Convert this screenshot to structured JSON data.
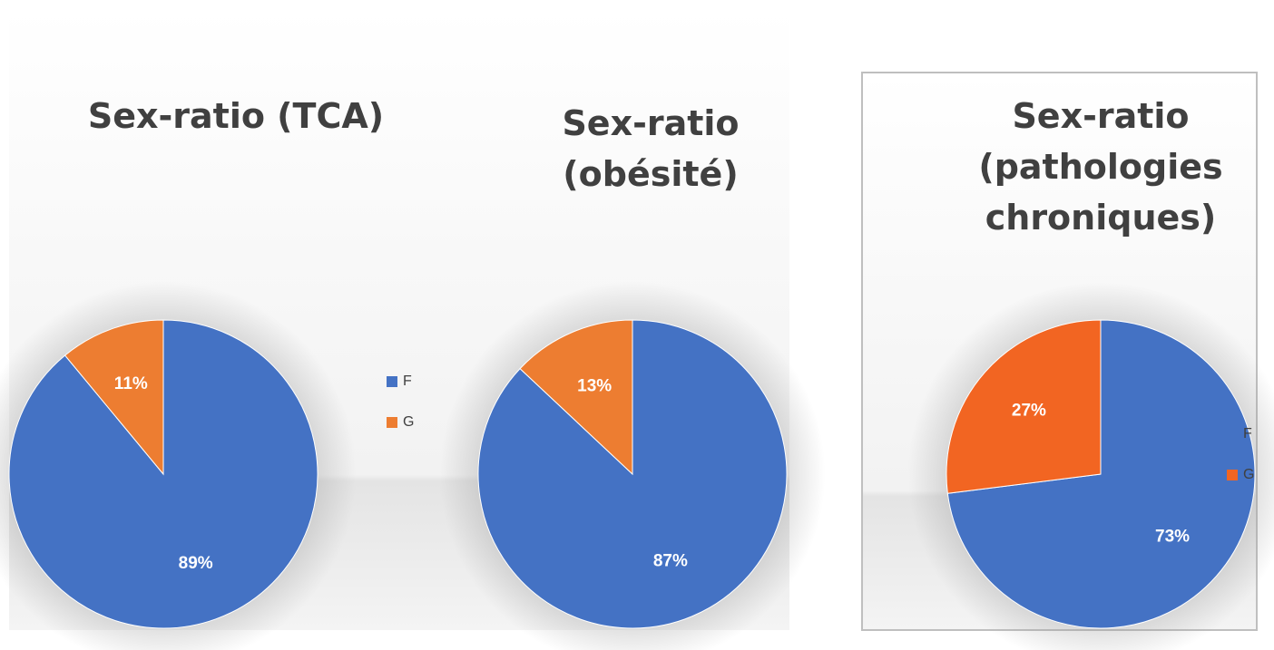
{
  "chart_data": [
    {
      "type": "pie",
      "title": "Sex-ratio (TCA)",
      "categories": [
        "F",
        "G"
      ],
      "values": [
        89,
        11
      ],
      "value_labels": [
        "89%",
        "11%"
      ],
      "colors": [
        "#4472c4",
        "#ed7d31"
      ],
      "legend": "right"
    },
    {
      "type": "pie",
      "title": "Sex-ratio (obésité)",
      "categories": [
        "F",
        "G"
      ],
      "values": [
        87,
        13
      ],
      "value_labels": [
        "87%",
        "13%"
      ],
      "colors": [
        "#4472c4",
        "#ed7d31"
      ]
    },
    {
      "type": "pie",
      "title": "Sex-ratio (pathologies chroniques)",
      "categories": [
        "F",
        "G"
      ],
      "values": [
        73,
        27
      ],
      "value_labels": [
        "73%",
        "27%"
      ],
      "colors": [
        "#4472c4",
        "#f26522"
      ],
      "legend": "right"
    }
  ]
}
